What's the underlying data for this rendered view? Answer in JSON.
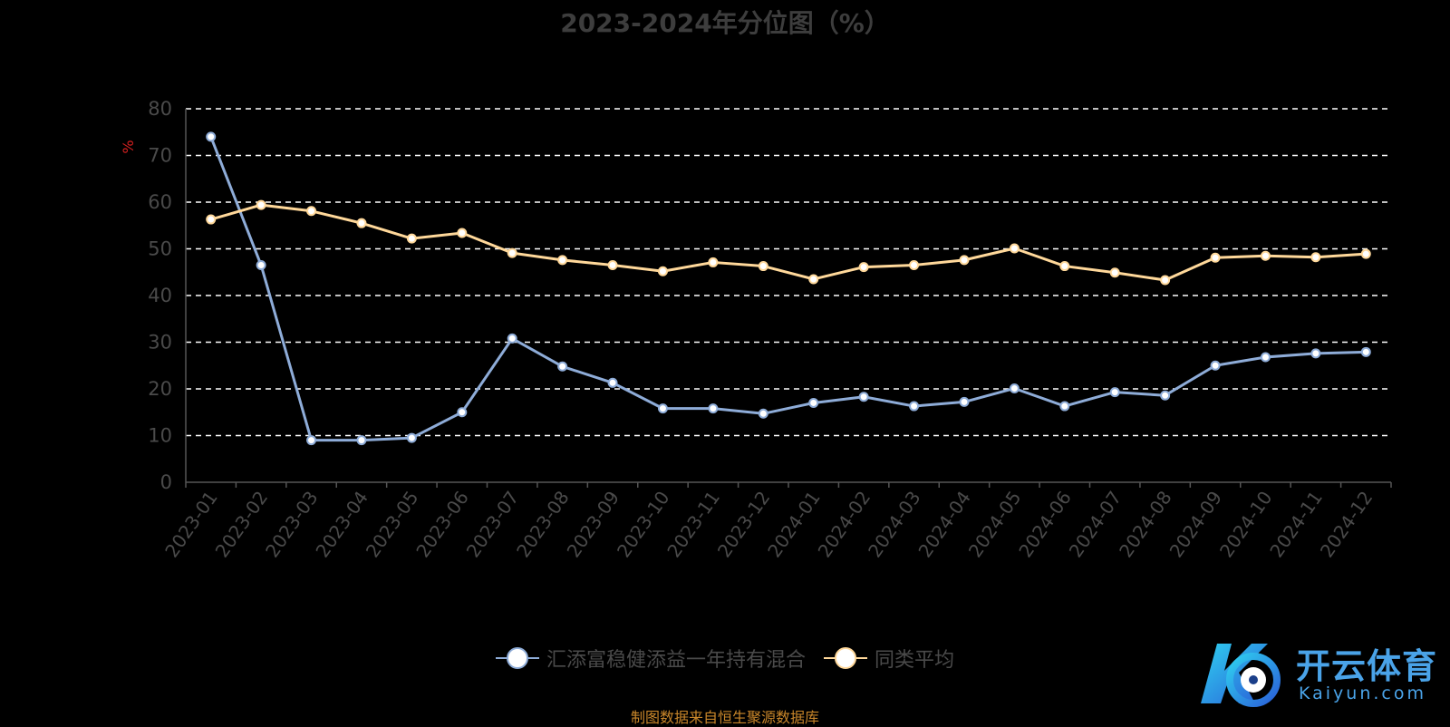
{
  "chart_data": {
    "type": "line",
    "title": "2023-2024年分位图（%）",
    "ylabel": "%",
    "ylim": [
      0,
      80
    ],
    "yticks": [
      "0",
      "10",
      "20",
      "30",
      "40",
      "50",
      "60",
      "70",
      "80"
    ],
    "categories": [
      "2023-01",
      "2023-02",
      "2023-03",
      "2023-04",
      "2023-05",
      "2023-06",
      "2023-07",
      "2023-08",
      "2023-09",
      "2023-10",
      "2023-11",
      "2023-12",
      "2024-01",
      "2024-02",
      "2024-03",
      "2024-04",
      "2024-05",
      "2024-06",
      "2024-07",
      "2024-08",
      "2024-09",
      "2024-10",
      "2024-11",
      "2024-12"
    ],
    "series": [
      {
        "name": "汇添富稳健添益一年持有混合",
        "color": "#8eacd8",
        "values": [
          74,
          46.5,
          9,
          9,
          9.5,
          15,
          30.8,
          24.8,
          21.3,
          15.8,
          15.8,
          14.7,
          17,
          18.3,
          16.3,
          17.2,
          20.1,
          16.3,
          19.3,
          18.6,
          25,
          26.8,
          27.6,
          27.9
        ]
      },
      {
        "name": "同类平均",
        "color": "#ffd89a",
        "values": [
          56.3,
          59.4,
          58.1,
          55.5,
          52.2,
          53.4,
          49.1,
          47.6,
          46.5,
          45.2,
          47.1,
          46.3,
          43.5,
          46.1,
          46.5,
          47.6,
          50.1,
          46.3,
          44.9,
          43.3,
          48.1,
          48.5,
          48.2,
          48.9
        ]
      }
    ],
    "grid": true,
    "legend_position": "bottom"
  },
  "source_note": "制图数据来自恒生聚源数据库",
  "watermark": {
    "cn": "开云体育",
    "en": "Kaiyun.com"
  },
  "colors": {
    "background": "#000000",
    "grid": "#ffffff",
    "axis": "#555555",
    "tick_text": "#4a4a4a",
    "ylabel": "#d42020"
  }
}
